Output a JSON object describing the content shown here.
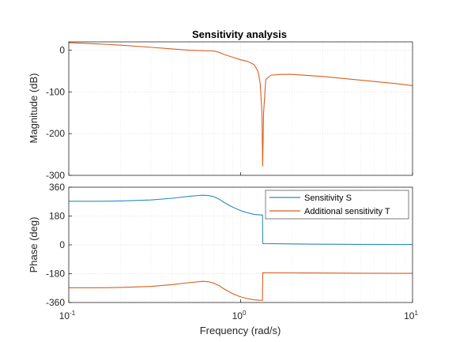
{
  "chart_data": {
    "type": "line",
    "title": "Sensitivity analysis",
    "xlabel": "Frequency  (rad/s)",
    "x_scale": "log",
    "xlim": [
      0.1,
      10
    ],
    "x_ticks": [
      {
        "base": "10",
        "exp": "-1"
      },
      {
        "base": "10",
        "exp": "0"
      },
      {
        "base": "10",
        "exp": "1"
      }
    ],
    "grid": true,
    "colors": {
      "S": "#2b8cbe",
      "T": "#d95f1e"
    },
    "magnitude": {
      "ylabel": "Magnitude (dB)",
      "ylim": [
        -300,
        20
      ],
      "y_ticks": [
        {
          "value": 0,
          "label": "0"
        },
        {
          "value": -100,
          "label": "-100"
        },
        {
          "value": -200,
          "label": "-200"
        },
        {
          "value": -300,
          "label": "-300"
        }
      ],
      "series": [
        {
          "key": "T",
          "x": [
            0.1,
            0.15,
            0.2,
            0.3,
            0.4,
            0.5,
            0.6,
            0.7,
            0.75,
            0.8,
            0.9,
            1.0,
            1.1,
            1.2,
            1.26,
            1.3,
            1.33,
            1.343,
            1.36,
            1.4,
            1.5,
            1.7,
            2,
            3,
            4,
            6,
            8,
            10
          ],
          "values": [
            18,
            15,
            12,
            7,
            3,
            0,
            -1,
            -2,
            -5,
            -10,
            -17,
            -23,
            -27,
            -35,
            -50,
            -80,
            -150,
            -278,
            -150,
            -70,
            -60,
            -58,
            -58,
            -63,
            -68,
            -75,
            -80,
            -85
          ]
        }
      ]
    },
    "phase": {
      "ylabel": "Phase (deg)",
      "ylim": [
        -360,
        360
      ],
      "y_ticks": [
        {
          "value": 360,
          "label": "360"
        },
        {
          "value": 180,
          "label": "180"
        },
        {
          "value": 0,
          "label": "0"
        },
        {
          "value": -180,
          "label": "-180"
        },
        {
          "value": -360,
          "label": "-360"
        }
      ],
      "legend_position": "top-right",
      "series": [
        {
          "key": "S",
          "name": "Sensitivity S",
          "x": [
            0.1,
            0.15,
            0.2,
            0.3,
            0.4,
            0.5,
            0.6,
            0.65,
            0.7,
            0.75,
            0.8,
            0.9,
            1.0,
            1.1,
            1.2,
            1.3,
            1.34,
            1.345,
            1.4,
            2,
            3,
            5,
            10
          ],
          "values": [
            272,
            272,
            274,
            280,
            291,
            303,
            310,
            308,
            300,
            285,
            265,
            235,
            214,
            200,
            190,
            187,
            186,
            8,
            8,
            6,
            4,
            3,
            2
          ]
        },
        {
          "key": "T",
          "name": "Additional sensitivity T",
          "x": [
            0.1,
            0.15,
            0.2,
            0.3,
            0.4,
            0.5,
            0.6,
            0.65,
            0.7,
            0.75,
            0.8,
            0.9,
            1.0,
            1.1,
            1.2,
            1.3,
            1.34,
            1.345,
            1.4,
            2,
            3,
            5,
            10
          ],
          "values": [
            -268,
            -268,
            -266,
            -260,
            -248,
            -236,
            -228,
            -230,
            -240,
            -255,
            -275,
            -305,
            -325,
            -336,
            -343,
            -346,
            -347,
            -174,
            -174,
            -175,
            -176,
            -177,
            -178
          ]
        }
      ]
    }
  }
}
